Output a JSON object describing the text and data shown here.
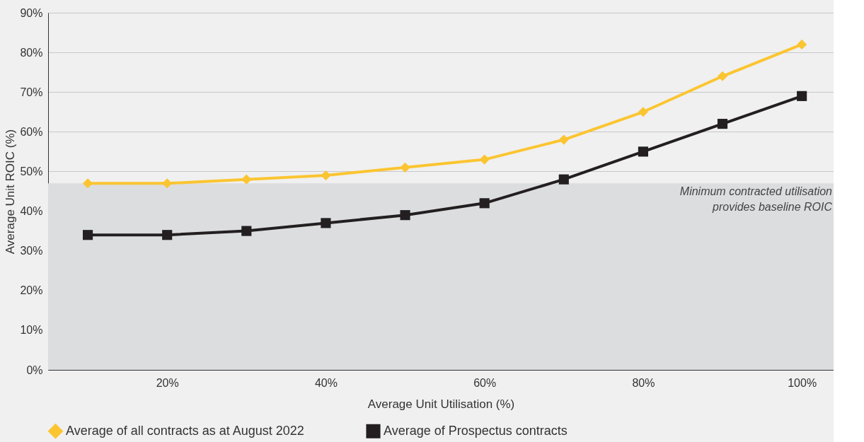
{
  "chart_data": {
    "type": "line",
    "xlabel": "Average Unit Utilisation (%)",
    "ylabel": "Average Unit ROIC (%)",
    "x": [
      10,
      20,
      30,
      40,
      50,
      60,
      70,
      80,
      90,
      100
    ],
    "xlim": [
      5,
      104
    ],
    "xticks": [
      {
        "value": 20,
        "label": "20%"
      },
      {
        "value": 40,
        "label": "40%"
      },
      {
        "value": 60,
        "label": "60%"
      },
      {
        "value": 80,
        "label": "80%"
      },
      {
        "value": 100,
        "label": "100%"
      }
    ],
    "ylim": [
      0,
      90
    ],
    "yticks": [
      {
        "value": 0,
        "label": "0%"
      },
      {
        "value": 10,
        "label": "10%"
      },
      {
        "value": 20,
        "label": "20%"
      },
      {
        "value": 30,
        "label": "30%"
      },
      {
        "value": 40,
        "label": "40%"
      },
      {
        "value": 50,
        "label": "50%"
      },
      {
        "value": 60,
        "label": "60%"
      },
      {
        "value": 70,
        "label": "70%"
      },
      {
        "value": 80,
        "label": "80%"
      },
      {
        "value": 90,
        "label": "90%"
      }
    ],
    "series": [
      {
        "name": "Average of all contracts as at August 2022",
        "color": "#fbc531",
        "marker": "diamond",
        "values": [
          47,
          47,
          48,
          49,
          51,
          53,
          58,
          65,
          74,
          82
        ]
      },
      {
        "name": "Average of Prospectus contracts",
        "color": "#231f20",
        "marker": "square",
        "values": [
          34,
          34,
          35,
          37,
          39,
          42,
          48,
          55,
          62,
          69
        ]
      }
    ],
    "bands": [
      {
        "axis": "y",
        "from": 0,
        "to": 47,
        "color": "#dcdddf",
        "label": "Minimum contracted utilisation\nprovides baseline ROIC"
      }
    ],
    "grid": "y",
    "legend": "bottom",
    "line_style": "solid"
  }
}
